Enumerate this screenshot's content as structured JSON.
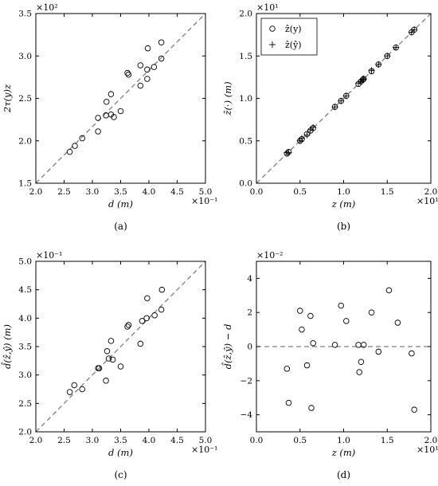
{
  "chart_data": [
    {
      "panel": "(a)",
      "type": "scatter",
      "xlabel": "d (m)",
      "ylabel": "2τ(y)z",
      "x_multiplier": "×10⁻¹",
      "y_multiplier": "×10²",
      "xlim": [
        2.0,
        5.0
      ],
      "ylim": [
        1.5,
        3.5
      ],
      "xticks": [
        "2.0",
        "2.5",
        "3.0",
        "3.5",
        "4.0",
        "4.5",
        "5.0"
      ],
      "yticks": [
        "1.5",
        "2.0",
        "2.5",
        "3.0",
        "3.5"
      ],
      "reference_line": {
        "style": "dashed",
        "from": [
          2.0,
          1.5
        ],
        "to": [
          5.0,
          3.5
        ]
      },
      "series": [
        {
          "marker": "circle",
          "points": [
            [
              2.6,
              1.87
            ],
            [
              2.69,
              1.94
            ],
            [
              2.82,
              2.03
            ],
            [
              3.1,
              2.11
            ],
            [
              3.1,
              2.27
            ],
            [
              3.24,
              2.3
            ],
            [
              3.25,
              2.46
            ],
            [
              3.33,
              2.55
            ],
            [
              3.33,
              2.31
            ],
            [
              3.38,
              2.28
            ],
            [
              3.5,
              2.35
            ],
            [
              3.62,
              2.8
            ],
            [
              3.64,
              2.78
            ],
            [
              3.85,
              2.65
            ],
            [
              3.85,
              2.89
            ],
            [
              3.97,
              2.84
            ],
            [
              3.97,
              2.73
            ],
            [
              3.98,
              3.09
            ],
            [
              4.09,
              2.87
            ],
            [
              4.22,
              2.97
            ],
            [
              4.22,
              3.16
            ]
          ]
        }
      ]
    },
    {
      "panel": "(b)",
      "type": "scatter",
      "xlabel": "z (m)",
      "ylabel": "ẑ(·) (m)",
      "x_multiplier": "×10¹",
      "y_multiplier": "×10¹",
      "xlim": [
        0.0,
        2.0
      ],
      "ylim": [
        0.0,
        2.0
      ],
      "xticks": [
        "0.0",
        "0.5",
        "1.0",
        "1.5",
        "2.0"
      ],
      "yticks": [
        "0.0",
        "0.5",
        "1.0",
        "1.5",
        "2.0"
      ],
      "legend": {
        "position": "top-left",
        "entries": [
          "ẑ(y)",
          "ẑ(ŷ)"
        ]
      },
      "reference_line": {
        "style": "dashed",
        "from": [
          0.0,
          0.0
        ],
        "to": [
          2.0,
          2.0
        ]
      },
      "series": [
        {
          "name": "ẑ(y)",
          "marker": "circle",
          "points": [
            [
              0.35,
              0.35
            ],
            [
              0.37,
              0.37
            ],
            [
              0.5,
              0.5
            ],
            [
              0.52,
              0.52
            ],
            [
              0.58,
              0.58
            ],
            [
              0.62,
              0.62
            ],
            [
              0.65,
              0.65
            ],
            [
              0.9,
              0.9
            ],
            [
              0.97,
              0.97
            ],
            [
              1.03,
              1.03
            ],
            [
              1.17,
              1.17
            ],
            [
              1.2,
              1.2
            ],
            [
              1.22,
              1.22
            ],
            [
              1.23,
              1.23
            ],
            [
              1.32,
              1.32
            ],
            [
              1.4,
              1.4
            ],
            [
              1.5,
              1.5
            ],
            [
              1.6,
              1.6
            ],
            [
              1.78,
              1.78
            ],
            [
              1.81,
              1.81
            ]
          ]
        },
        {
          "name": "ẑ(ŷ)",
          "marker": "plus",
          "points": [
            [
              0.35,
              0.36
            ],
            [
              0.37,
              0.36
            ],
            [
              0.5,
              0.5
            ],
            [
              0.52,
              0.53
            ],
            [
              0.58,
              0.57
            ],
            [
              0.62,
              0.63
            ],
            [
              0.65,
              0.66
            ],
            [
              0.9,
              0.9
            ],
            [
              0.97,
              0.97
            ],
            [
              1.03,
              1.03
            ],
            [
              1.17,
              1.18
            ],
            [
              1.2,
              1.2
            ],
            [
              1.22,
              1.22
            ],
            [
              1.23,
              1.23
            ],
            [
              1.32,
              1.33
            ],
            [
              1.4,
              1.4
            ],
            [
              1.5,
              1.5
            ],
            [
              1.6,
              1.6
            ],
            [
              1.78,
              1.78
            ],
            [
              1.81,
              1.81
            ]
          ]
        }
      ]
    },
    {
      "panel": "(c)",
      "type": "scatter",
      "xlabel": "d (m)",
      "ylabel": "d̂(ẑ,ŷ) (m)",
      "x_multiplier": "×10⁻¹",
      "y_multiplier": "×10⁻¹",
      "xlim": [
        2.0,
        5.0
      ],
      "ylim": [
        2.0,
        5.0
      ],
      "xticks": [
        "2.0",
        "2.5",
        "3.0",
        "3.5",
        "4.0",
        "4.5",
        "5.0"
      ],
      "yticks": [
        "2.0",
        "2.5",
        "3.0",
        "3.5",
        "4.0",
        "4.5",
        "5.0"
      ],
      "reference_line": {
        "style": "dashed",
        "from": [
          2.0,
          2.0
        ],
        "to": [
          5.0,
          5.0
        ]
      },
      "series": [
        {
          "marker": "circle",
          "points": [
            [
              2.6,
              2.7
            ],
            [
              2.68,
              2.82
            ],
            [
              2.82,
              2.75
            ],
            [
              3.1,
              3.12
            ],
            [
              3.12,
              3.12
            ],
            [
              3.24,
              2.9
            ],
            [
              3.26,
              3.42
            ],
            [
              3.29,
              3.29
            ],
            [
              3.33,
              3.6
            ],
            [
              3.36,
              3.27
            ],
            [
              3.5,
              3.15
            ],
            [
              3.62,
              3.85
            ],
            [
              3.64,
              3.88
            ],
            [
              3.85,
              3.55
            ],
            [
              3.88,
              3.95
            ],
            [
              3.96,
              4.0
            ],
            [
              3.97,
              4.35
            ],
            [
              4.1,
              4.05
            ],
            [
              4.22,
              4.15
            ],
            [
              4.23,
              4.5
            ]
          ]
        }
      ]
    },
    {
      "panel": "(d)",
      "type": "scatter",
      "xlabel": "z (m)",
      "ylabel": "d̂(ẑ,ŷ) − d",
      "x_multiplier": "×10¹",
      "y_multiplier": "×10⁻²",
      "xlim": [
        0.0,
        2.0
      ],
      "ylim": [
        -5,
        5
      ],
      "xticks": [
        "0.0",
        "0.5",
        "1.0",
        "1.5",
        "2.0"
      ],
      "yticks": [
        "−4",
        "−2",
        "0",
        "2",
        "4"
      ],
      "reference_line": {
        "style": "dashed",
        "from": [
          0.0,
          0.0
        ],
        "to": [
          2.0,
          0.0
        ]
      },
      "series": [
        {
          "marker": "circle",
          "points": [
            [
              0.35,
              -1.3
            ],
            [
              0.37,
              -3.3
            ],
            [
              0.5,
              2.1
            ],
            [
              0.52,
              1.0
            ],
            [
              0.58,
              -1.1
            ],
            [
              0.62,
              1.8
            ],
            [
              0.63,
              -3.6
            ],
            [
              0.65,
              0.2
            ],
            [
              0.9,
              0.1
            ],
            [
              0.97,
              2.4
            ],
            [
              1.03,
              1.5
            ],
            [
              1.17,
              0.1
            ],
            [
              1.18,
              -1.5
            ],
            [
              1.2,
              -0.9
            ],
            [
              1.23,
              0.1
            ],
            [
              1.32,
              2.0
            ],
            [
              1.4,
              -0.3
            ],
            [
              1.52,
              3.3
            ],
            [
              1.62,
              1.4
            ],
            [
              1.78,
              -0.4
            ],
            [
              1.81,
              -3.7
            ]
          ]
        }
      ]
    }
  ]
}
